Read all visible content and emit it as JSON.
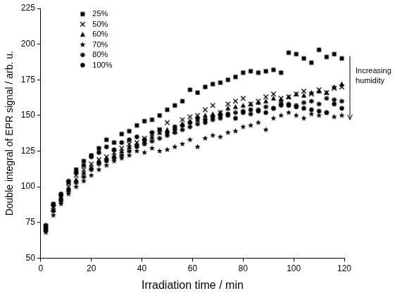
{
  "chart_data": {
    "type": "scatter",
    "x_label": "Irradiation time / min",
    "y_label": "Double integral of EPR signal / arb. u.",
    "annotation": "Increasing humidity",
    "legend": "upper left",
    "grid": false,
    "xlim": [
      0,
      120
    ],
    "xticks": [
      0,
      20,
      40,
      60,
      80,
      100,
      120
    ],
    "ylim": [
      50,
      225
    ],
    "yticks": [
      50,
      75,
      100,
      125,
      150,
      175,
      200,
      225
    ],
    "x": [
      2,
      5,
      8,
      11,
      14,
      17,
      20,
      23,
      26,
      29,
      32,
      35,
      38,
      41,
      44,
      47,
      50,
      53,
      56,
      59,
      62,
      65,
      68,
      71,
      74,
      77,
      80,
      83,
      86,
      89,
      92,
      95,
      98,
      101,
      104,
      107,
      110,
      113,
      116,
      119
    ],
    "series": [
      {
        "name": "25%",
        "color": "#000000",
        "marker": "square",
        "values": [
          72,
          88,
          94,
          103,
          112,
          118,
          122,
          127,
          133,
          131,
          137,
          139,
          143,
          146,
          147,
          150,
          154,
          157,
          160,
          168,
          166,
          170,
          172,
          173,
          175,
          177,
          180,
          181,
          180,
          181,
          182,
          180,
          194,
          193,
          190,
          187,
          196,
          191,
          193,
          190
        ]
      },
      {
        "name": "50%",
        "color": "#000000",
        "marker": "x",
        "values": [
          70,
          86,
          93,
          100,
          108,
          112,
          116,
          119,
          121,
          124,
          127,
          130,
          131,
          134,
          137,
          140,
          145,
          139,
          147,
          149,
          150,
          154,
          157,
          152,
          158,
          160,
          162,
          158,
          160,
          163,
          165,
          162,
          163,
          165,
          167,
          165,
          168,
          166,
          169,
          170
        ]
      },
      {
        "name": "60%",
        "color": "#000000",
        "marker": "triangle",
        "values": [
          71,
          84,
          92,
          99,
          105,
          110,
          114,
          118,
          120,
          122,
          125,
          128,
          130,
          132,
          135,
          138,
          140,
          141,
          144,
          146,
          147,
          150,
          151,
          152,
          155,
          156,
          157,
          158,
          159,
          160,
          162,
          161,
          163,
          165,
          164,
          166,
          167,
          166,
          170,
          172
        ]
      },
      {
        "name": "70%",
        "color": "#000000",
        "marker": "star",
        "values": [
          68,
          80,
          88,
          95,
          100,
          104,
          108,
          112,
          115,
          118,
          120,
          122,
          125,
          124,
          127,
          125,
          126,
          128,
          130,
          133,
          128,
          134,
          136,
          135,
          138,
          139,
          142,
          143,
          145,
          140,
          148,
          150,
          152,
          150,
          148,
          151,
          150,
          152,
          149,
          150
        ]
      },
      {
        "name": "80%",
        "color": "#000000",
        "marker": "asterisk",
        "values": [
          70,
          83,
          90,
          97,
          103,
          107,
          112,
          116,
          118,
          120,
          122,
          125,
          128,
          130,
          132,
          134,
          136,
          138,
          140,
          142,
          144,
          145,
          147,
          148,
          150,
          152,
          153,
          151,
          154,
          156,
          155,
          157,
          158,
          157,
          159,
          160,
          158,
          162,
          161,
          160
        ]
      },
      {
        "name": "100%",
        "color": "#000000",
        "marker": "circle",
        "values": [
          73,
          87,
          95,
          104,
          110,
          115,
          121,
          124,
          128,
          126,
          131,
          133,
          135,
          133,
          138,
          140,
          138,
          142,
          143,
          145,
          148,
          147,
          149,
          150,
          151,
          148,
          152,
          154,
          153,
          152,
          155,
          158,
          157,
          156,
          155,
          154,
          153,
          152,
          158,
          155
        ]
      }
    ]
  }
}
